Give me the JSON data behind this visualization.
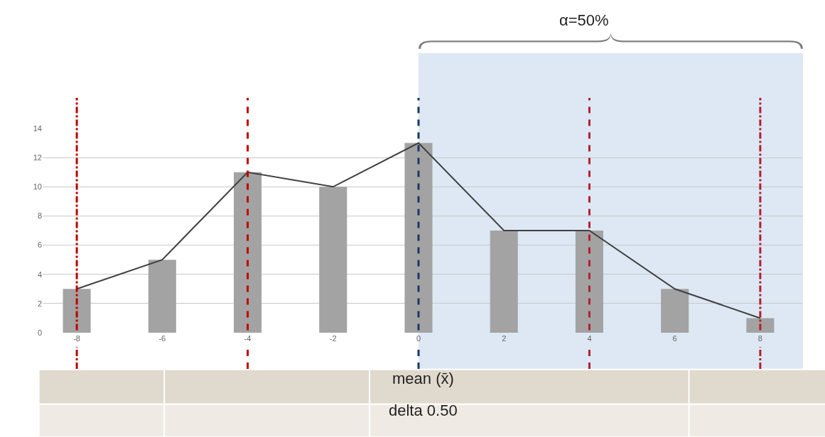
{
  "chart_data": {
    "type": "bar",
    "x": [
      -8,
      -6,
      -4,
      -2,
      0,
      2,
      4,
      6,
      8
    ],
    "series": [
      {
        "color": "#a3a3a3",
        "values": [
          3,
          5,
          11,
          10,
          13,
          7,
          7,
          3,
          1
        ]
      },
      {
        "type": "line",
        "color": "#404040",
        "values": [
          3,
          5,
          11,
          10,
          13,
          7,
          7,
          3,
          1
        ]
      }
    ],
    "xlim": [
      -8.8,
      9
    ],
    "xticks": [
      -8,
      -6,
      -4,
      -2,
      0,
      2,
      4,
      6,
      8
    ],
    "ylim": [
      0,
      14
    ],
    "yticks": [
      0,
      2,
      4,
      6,
      8,
      10,
      12,
      14
    ],
    "grid": "y",
    "marker": "none",
    "ref_lines": [
      {
        "axis": "x",
        "value": -8,
        "color": "#c00000",
        "line_style": "dashdot"
      },
      {
        "axis": "x",
        "value": -4,
        "color": "#c00000",
        "line_style": "dashed"
      },
      {
        "axis": "x",
        "value": 0,
        "color": "#1f3864",
        "line_style": "dashed"
      },
      {
        "axis": "x",
        "value": 4,
        "color": "#b22030",
        "line_style": "dashed"
      },
      {
        "axis": "x",
        "value": 8,
        "color": "#b22030",
        "line_style": "dashdot"
      }
    ],
    "bands": [
      {
        "axis": "x",
        "from": 0,
        "to": 9,
        "label": "α=50%",
        "color": "#dde8f4"
      }
    ],
    "annotations": [
      "mean (x̄)",
      "delta 0.50"
    ]
  }
}
